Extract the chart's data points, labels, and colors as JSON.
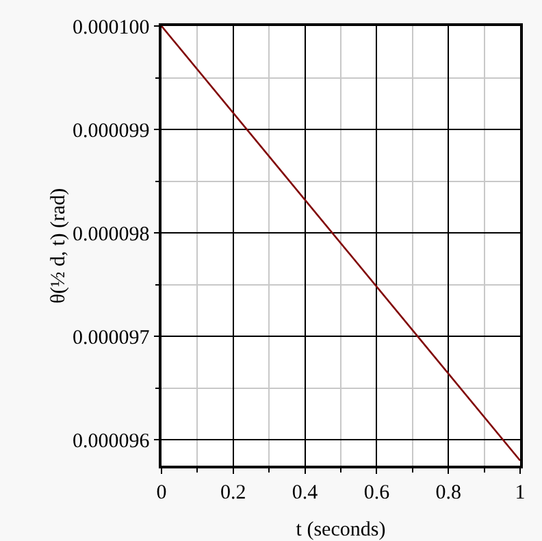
{
  "chart_data": {
    "type": "line",
    "xlabel": "t (seconds)",
    "ylabel": "θ(½ d, t) (rad)",
    "x": [
      0,
      1
    ],
    "series": [
      {
        "color": "#800000",
        "values": [
          0.0001,
          9.58e-05
        ]
      }
    ],
    "xlim": [
      0,
      1
    ],
    "xticks": [
      0,
      0.2,
      0.4,
      0.6,
      0.8,
      1
    ],
    "ylim": [
      9.575e-05,
      0.0001
    ],
    "yticks": [
      {
        "value": 9.6e-05,
        "label": "0.000096"
      },
      {
        "value": 9.7e-05,
        "label": "0.000097"
      },
      {
        "value": 9.8e-05,
        "label": "0.000098"
      },
      {
        "value": 9.9e-05,
        "label": "0.000099"
      },
      {
        "value": 0.0001,
        "label": "0.000100"
      }
    ],
    "grid": true,
    "marker": "none",
    "line_style": "solid"
  }
}
